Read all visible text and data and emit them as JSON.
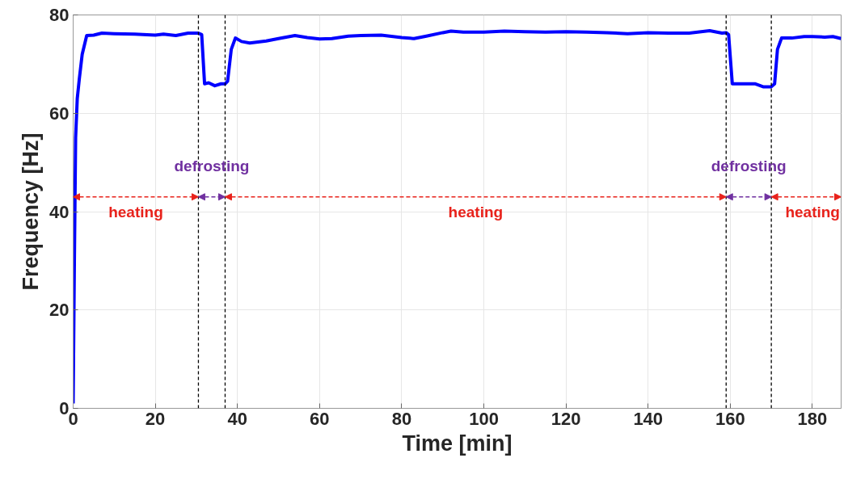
{
  "chart_data": {
    "type": "line",
    "xlabel": "Time [min]",
    "ylabel": "Frequency [Hz]",
    "x": [
      0,
      0.3,
      0.6,
      1,
      1.5,
      2.2,
      3.3,
      5,
      7,
      10,
      15,
      20,
      22,
      25,
      28,
      30.5,
      31.3,
      32,
      33,
      34.5,
      36,
      37,
      37.6,
      38.5,
      39.5,
      41,
      43,
      47,
      50,
      54,
      57,
      60,
      63,
      67,
      70,
      75,
      80,
      83,
      86,
      90,
      92,
      95,
      100,
      105,
      110,
      115,
      120,
      125,
      130,
      135,
      140,
      145,
      150,
      155,
      158,
      159,
      159.6,
      160.5,
      163,
      166,
      168,
      170,
      170.8,
      171.5,
      172.5,
      175,
      178,
      180,
      183,
      185,
      187
    ],
    "series": [
      {
        "color": "#0000ff",
        "values": [
          1,
          30,
          55,
          63,
          67,
          72,
          75.8,
          75.9,
          76.3,
          76.2,
          76.1,
          75.9,
          76.1,
          75.8,
          76.3,
          76.3,
          76,
          66,
          66.2,
          65.6,
          66,
          66,
          66.5,
          73,
          75.3,
          74.6,
          74.3,
          74.7,
          75.2,
          75.8,
          75.4,
          75.1,
          75.2,
          75.7,
          75.8,
          75.9,
          75.4,
          75.2,
          75.7,
          76.4,
          76.7,
          76.5,
          76.5,
          76.7,
          76.6,
          76.5,
          76.6,
          76.5,
          76.4,
          76.2,
          76.4,
          76.3,
          76.3,
          76.8,
          76.3,
          76.4,
          76,
          66,
          66,
          66,
          65.4,
          65.4,
          66,
          73,
          75.3,
          75.3,
          75.6,
          75.6,
          75.5,
          75.6,
          75.2
        ]
      }
    ],
    "xlim": [
      0,
      187
    ],
    "xticks": [
      0,
      20,
      40,
      60,
      80,
      100,
      120,
      140,
      160,
      180
    ],
    "ylim": [
      0,
      80
    ],
    "yticks": [
      0,
      20,
      40,
      60,
      80
    ],
    "grid": true,
    "line_style": "solid",
    "ref_lines": [
      {
        "axis": "x",
        "value": 30.5,
        "color": "#000000",
        "line_style": "dashed"
      },
      {
        "axis": "x",
        "value": 37,
        "color": "#000000",
        "line_style": "dashed"
      },
      {
        "axis": "x",
        "value": 159,
        "color": "#000000",
        "line_style": "dashed"
      },
      {
        "axis": "x",
        "value": 170,
        "color": "#000000",
        "line_style": "dashed"
      }
    ],
    "annotations": [
      "heating",
      "defrosting",
      "heating",
      "defrosting",
      "heating"
    ]
  }
}
